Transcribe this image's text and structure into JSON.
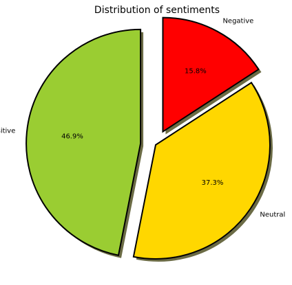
{
  "chart_data": {
    "type": "pie",
    "title": "Distribution of sentiments",
    "slices": [
      {
        "label": "Negative",
        "value": 15.8,
        "pct_label": "15.8%",
        "color": "#ff0000",
        "exploded": true
      },
      {
        "label": "Neutral",
        "value": 37.3,
        "pct_label": "37.3%",
        "color": "#ffd700",
        "exploded": false
      },
      {
        "label": "Positive",
        "value": 46.9,
        "pct_label": "46.9%",
        "color": "#9acd32",
        "exploded": true
      }
    ],
    "start_angle_deg": 90,
    "direction": "clockwise",
    "shadow": true,
    "edge_color": "#000000",
    "shadow_color": "#6b6b45"
  }
}
